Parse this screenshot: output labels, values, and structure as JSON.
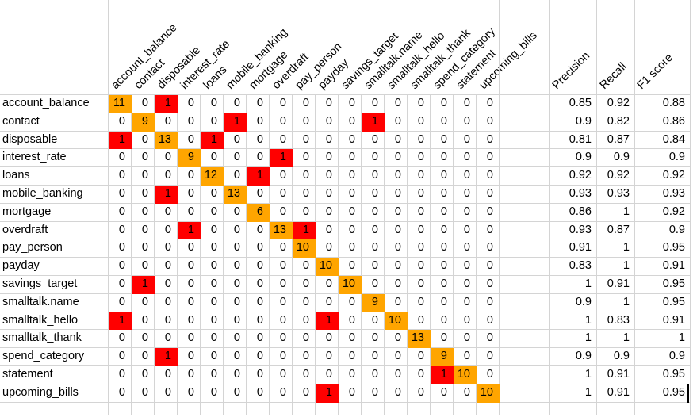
{
  "colors": {
    "diagonal_fill": "#FFA500",
    "off_diagonal_error_fill": "#FF0000",
    "gridline": "#D4D4D4",
    "text": "#000000",
    "background": "#FFFFFF"
  },
  "metric_headers": [
    "Precision",
    "Recall",
    "F1 score"
  ],
  "chart_data": {
    "type": "heatmap",
    "title": "",
    "x_labels": [
      "account_balance",
      "contact",
      "disposable",
      "interest_rate",
      "loans",
      "mobile_banking",
      "mortgage",
      "overdraft",
      "pay_person",
      "payday",
      "savings_target",
      "smalltalk.name",
      "smalltalk_hello",
      "smalltalk_thank",
      "spend_category",
      "statement",
      "upcoming_bills"
    ],
    "y_labels": [
      "account_balance",
      "contact",
      "disposable",
      "interest_rate",
      "loans",
      "mobile_banking",
      "mortgage",
      "overdraft",
      "pay_person",
      "payday",
      "savings_target",
      "smalltalk.name",
      "smalltalk_hello",
      "smalltalk_thank",
      "spend_category",
      "statement",
      "upcoming_bills"
    ],
    "matrix": [
      [
        11,
        0,
        1,
        0,
        0,
        0,
        0,
        0,
        0,
        0,
        0,
        0,
        0,
        0,
        0,
        0,
        0
      ],
      [
        0,
        9,
        0,
        0,
        0,
        1,
        0,
        0,
        0,
        0,
        0,
        1,
        0,
        0,
        0,
        0,
        0
      ],
      [
        1,
        0,
        13,
        0,
        1,
        0,
        0,
        0,
        0,
        0,
        0,
        0,
        0,
        0,
        0,
        0,
        0
      ],
      [
        0,
        0,
        0,
        9,
        0,
        0,
        0,
        1,
        0,
        0,
        0,
        0,
        0,
        0,
        0,
        0,
        0
      ],
      [
        0,
        0,
        0,
        0,
        12,
        0,
        1,
        0,
        0,
        0,
        0,
        0,
        0,
        0,
        0,
        0,
        0
      ],
      [
        0,
        0,
        1,
        0,
        0,
        13,
        0,
        0,
        0,
        0,
        0,
        0,
        0,
        0,
        0,
        0,
        0
      ],
      [
        0,
        0,
        0,
        0,
        0,
        0,
        6,
        0,
        0,
        0,
        0,
        0,
        0,
        0,
        0,
        0,
        0
      ],
      [
        0,
        0,
        0,
        1,
        0,
        0,
        0,
        13,
        1,
        0,
        0,
        0,
        0,
        0,
        0,
        0,
        0
      ],
      [
        0,
        0,
        0,
        0,
        0,
        0,
        0,
        0,
        10,
        0,
        0,
        0,
        0,
        0,
        0,
        0,
        0
      ],
      [
        0,
        0,
        0,
        0,
        0,
        0,
        0,
        0,
        0,
        10,
        0,
        0,
        0,
        0,
        0,
        0,
        0
      ],
      [
        0,
        1,
        0,
        0,
        0,
        0,
        0,
        0,
        0,
        0,
        10,
        0,
        0,
        0,
        0,
        0,
        0
      ],
      [
        0,
        0,
        0,
        0,
        0,
        0,
        0,
        0,
        0,
        0,
        0,
        9,
        0,
        0,
        0,
        0,
        0
      ],
      [
        1,
        0,
        0,
        0,
        0,
        0,
        0,
        0,
        0,
        1,
        0,
        0,
        10,
        0,
        0,
        0,
        0
      ],
      [
        0,
        0,
        0,
        0,
        0,
        0,
        0,
        0,
        0,
        0,
        0,
        0,
        0,
        13,
        0,
        0,
        0
      ],
      [
        0,
        0,
        1,
        0,
        0,
        0,
        0,
        0,
        0,
        0,
        0,
        0,
        0,
        0,
        9,
        0,
        0
      ],
      [
        0,
        0,
        0,
        0,
        0,
        0,
        0,
        0,
        0,
        0,
        0,
        0,
        0,
        0,
        1,
        10,
        0
      ],
      [
        0,
        0,
        0,
        0,
        0,
        0,
        0,
        0,
        0,
        1,
        0,
        0,
        0,
        0,
        0,
        0,
        10
      ]
    ],
    "metrics": {
      "precision": [
        0.85,
        0.9,
        0.81,
        0.9,
        0.92,
        0.93,
        0.86,
        0.93,
        0.91,
        0.83,
        1,
        0.9,
        1,
        1,
        0.9,
        1,
        1
      ],
      "recall": [
        0.92,
        0.82,
        0.87,
        0.9,
        0.92,
        0.93,
        1,
        0.87,
        1,
        1,
        0.91,
        1,
        0.83,
        1,
        0.9,
        0.91,
        0.91
      ],
      "f1": [
        0.88,
        0.86,
        0.84,
        0.9,
        0.92,
        0.93,
        0.92,
        0.9,
        0.95,
        0.91,
        0.95,
        0.95,
        0.91,
        1,
        0.9,
        0.95,
        0.95
      ]
    },
    "highlight_rule": "diagonal (true-positive) cells filled orange; non-zero off-diagonal (misclassified) cells filled red",
    "legend_position": "none",
    "grid": true
  }
}
